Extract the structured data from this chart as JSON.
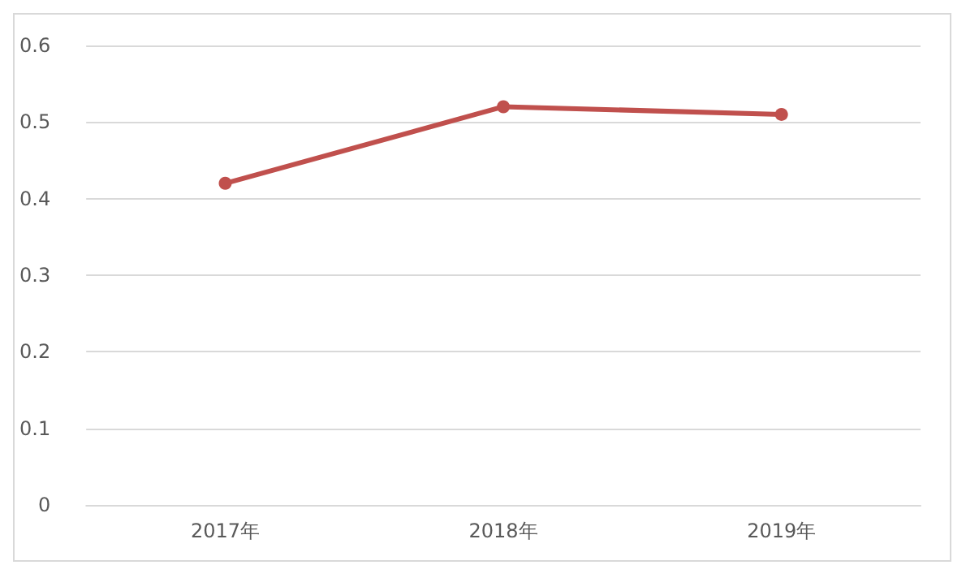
{
  "chart_data": {
    "type": "line",
    "categories": [
      "2017年",
      "2018年",
      "2019年"
    ],
    "series": [
      {
        "color": "#c0504d",
        "values": [
          0.42,
          0.52,
          0.51
        ]
      }
    ],
    "ylim": [
      0,
      0.6
    ],
    "yticks": [
      0,
      0.1,
      0.2,
      0.3,
      0.4,
      0.5,
      0.6
    ],
    "grid": "y",
    "marker": "circle",
    "line_style": "solid"
  }
}
